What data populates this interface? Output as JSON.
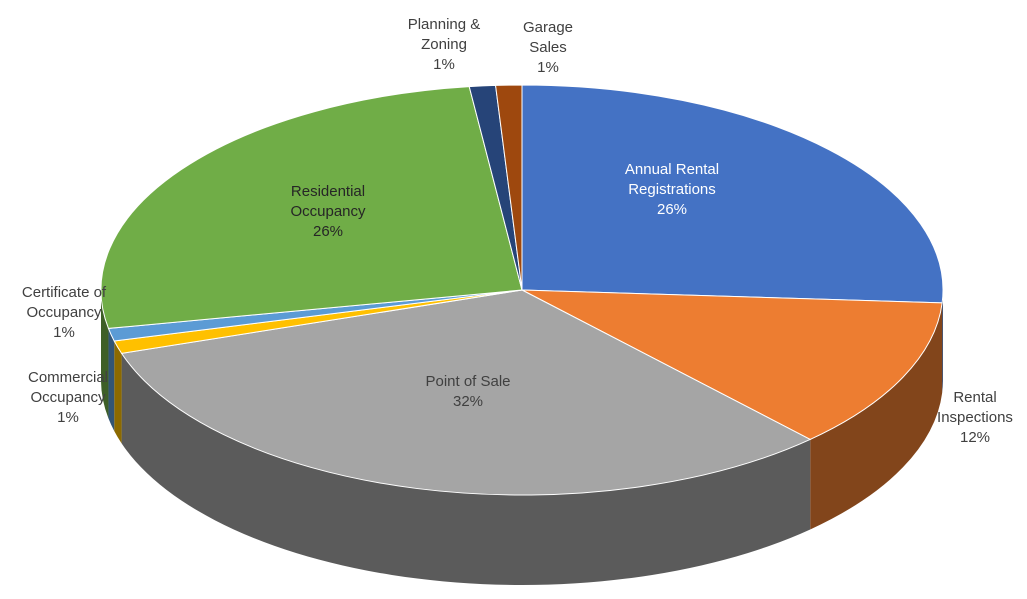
{
  "chart_data": {
    "type": "pie",
    "categories": [
      "Annual Rental Registrations",
      "Rental Inspections",
      "Point of Sale",
      "Commercial Occupancy",
      "Certificate of Occupancy",
      "Residential Occupancy",
      "Planning & Zoning",
      "Garage Sales"
    ],
    "values": [
      26,
      12,
      32,
      1,
      1,
      26,
      1,
      1
    ],
    "value_labels": [
      "26%",
      "12%",
      "32%",
      "1%",
      "1%",
      "26%",
      "1%",
      "1%"
    ],
    "colors": [
      "#4472c4",
      "#ed7d31",
      "#a5a5a5",
      "#ffc000",
      "#5b9bd5",
      "#70ad47",
      "#264478",
      "#9e480e"
    ]
  }
}
